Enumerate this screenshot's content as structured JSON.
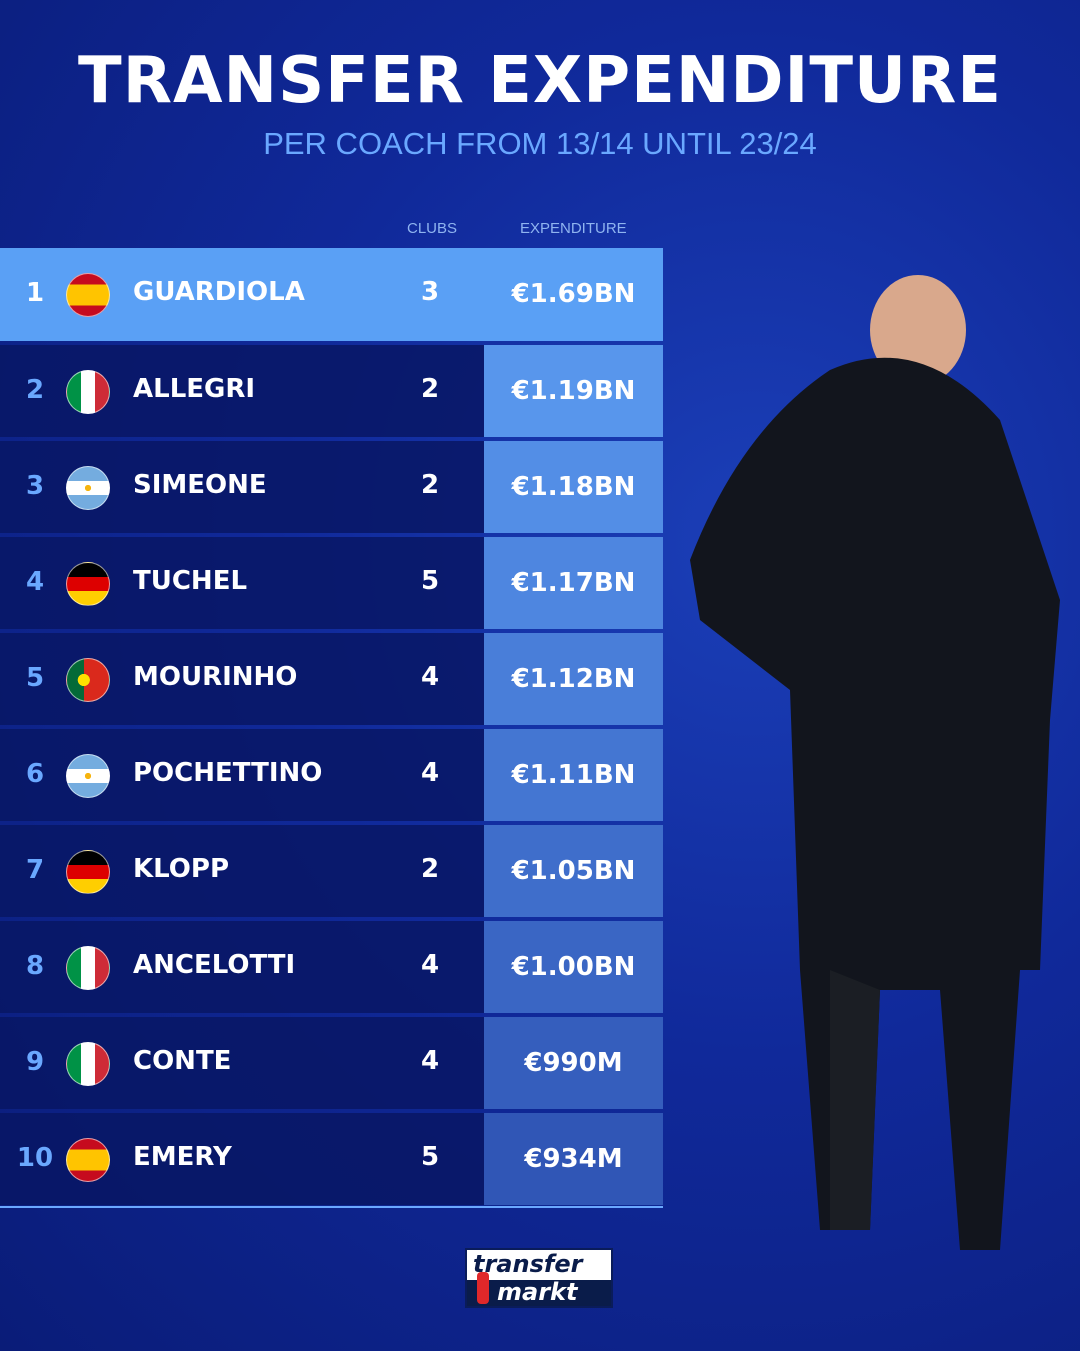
{
  "header": {
    "title": "TRANSFER EXPENDITURE",
    "subtitle": "PER COACH FROM 13/14 UNTIL 23/24"
  },
  "columns": {
    "clubs": "CLUBS",
    "expenditure": "EXPENDITURE"
  },
  "rows": [
    {
      "rank": "1",
      "flag": "spain",
      "name": "GUARDIOLA",
      "clubs": "3",
      "expenditure": "€1.69BN",
      "cell_color": "#5aa0f5"
    },
    {
      "rank": "2",
      "flag": "italy",
      "name": "ALLEGRI",
      "clubs": "2",
      "expenditure": "€1.19BN",
      "cell_color": "#5896ec"
    },
    {
      "rank": "3",
      "flag": "argentina",
      "name": "SIMEONE",
      "clubs": "2",
      "expenditure": "€1.18BN",
      "cell_color": "#538ee6"
    },
    {
      "rank": "4",
      "flag": "germany",
      "name": "TUCHEL",
      "clubs": "5",
      "expenditure": "€1.17BN",
      "cell_color": "#4e86e0"
    },
    {
      "rank": "5",
      "flag": "portugal",
      "name": "MOURINHO",
      "clubs": "4",
      "expenditure": "€1.12BN",
      "cell_color": "#497ed9"
    },
    {
      "rank": "6",
      "flag": "argentina",
      "name": "POCHETTINO",
      "clubs": "4",
      "expenditure": "€1.11BN",
      "cell_color": "#4476d2"
    },
    {
      "rank": "7",
      "flag": "germany",
      "name": "KLOPP",
      "clubs": "2",
      "expenditure": "€1.05BN",
      "cell_color": "#3f6ecb"
    },
    {
      "rank": "8",
      "flag": "italy",
      "name": "ANCELOTTI",
      "clubs": "4",
      "expenditure": "€1.00BN",
      "cell_color": "#3a66c4"
    },
    {
      "rank": "9",
      "flag": "italy",
      "name": "CONTE",
      "clubs": "4",
      "expenditure": "€990M",
      "cell_color": "#355ebd"
    },
    {
      "rank": "10",
      "flag": "spain",
      "name": "EMERY",
      "clubs": "5",
      "expenditure": "€934M",
      "cell_color": "#3056b6"
    }
  ],
  "logo": {
    "line1": "transfer",
    "line2": "markt"
  },
  "colors": {
    "accent": "#6aa8ff",
    "highlight": "#5aa0f5",
    "row_bg": "#08166a",
    "background": "#10299a"
  }
}
